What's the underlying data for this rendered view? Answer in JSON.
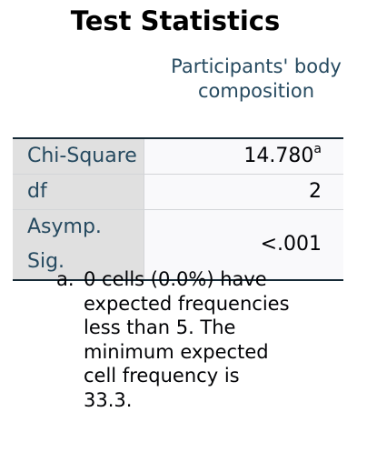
{
  "title": "Test Statistics",
  "column_header": "Participants' body composition",
  "rows": [
    {
      "label": "Chi-Square",
      "value": "14.780",
      "footnote_mark": "a"
    },
    {
      "label": "df",
      "value": "2"
    },
    {
      "label": "Asymp. Sig.",
      "value": "<.001"
    }
  ],
  "footnote": {
    "letter": "a.",
    "text": "0 cells (0.0%) have expected frequencies less than 5. The minimum expected cell frequency is 33.3."
  }
}
